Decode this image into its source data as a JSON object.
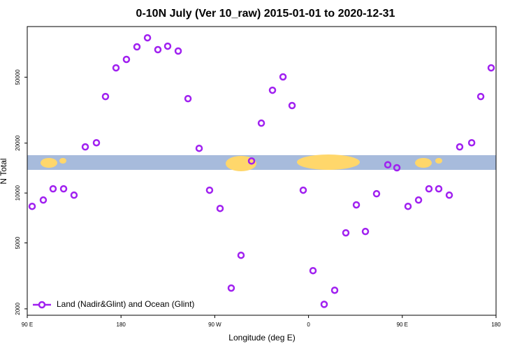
{
  "chart_data": {
    "type": "scatter",
    "title": "0-10N July (Ver 10_raw)   2015-01-01 to 2020-12-31",
    "x_label": "Longitude (deg E)",
    "y_label": "N Total",
    "log_y": true,
    "legend_position": "bottom-left",
    "xlim": [
      90,
      540
    ],
    "xticks": [
      {
        "value": 90,
        "label": "90 E"
      },
      {
        "value": 180,
        "label": "180"
      },
      {
        "value": 270,
        "label": "90 W"
      },
      {
        "value": 360,
        "label": "0"
      },
      {
        "value": 450,
        "label": "90 E"
      },
      {
        "value": 540,
        "label": "180"
      }
    ],
    "ylim": [
      1830,
      101000
    ],
    "yticks": [
      2000,
      5000,
      10000,
      20000,
      50000
    ],
    "series": [
      {
        "name": "Land (Nadir&Glint) and Ocean (Glint)",
        "color": "#a020f0",
        "x": [
          94.7,
          105.4,
          114.8,
          124.9,
          134.9,
          145.7,
          156.4,
          165.1,
          175.2,
          185.2,
          195.3,
          205.4,
          215.4,
          224.8,
          234.9,
          244.3,
          255.0,
          265.0,
          275.1,
          285.8,
          295.2,
          305.3,
          314.7,
          325.4,
          335.5,
          344.2,
          354.9,
          364.3,
          375.0,
          385.1,
          395.8,
          405.9,
          414.6,
          425.3,
          436.1,
          444.8,
          455.5,
          465.6,
          475.6,
          485.0,
          495.1,
          505.1,
          516.6,
          525.3,
          535.3
        ],
        "values": [
          8310,
          9070,
          10600,
          10600,
          9710,
          18980,
          20100,
          38200,
          56900,
          64000,
          76200,
          86400,
          73300,
          76900,
          71900,
          37100,
          18600,
          10400,
          8070,
          2670,
          4210,
          15600,
          26400,
          41700,
          50200,
          33700,
          10400,
          3400,
          2130,
          2590,
          5750,
          8480,
          5860,
          9900,
          14800,
          14200,
          8310,
          9070,
          10600,
          10600,
          9710,
          18980,
          20100,
          38200,
          56900
        ]
      }
    ]
  }
}
